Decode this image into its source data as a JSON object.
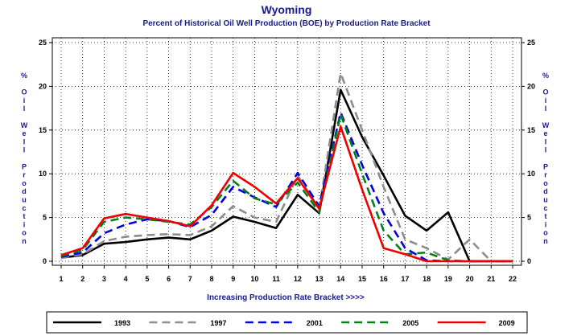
{
  "chart_data": {
    "type": "line",
    "title": "Wyoming",
    "subtitle": "Percent of Historical Oil Well Production (BOE) by Production Rate Bracket",
    "xlabel": "Increasing Production Rate Bracket >>>>",
    "ylabel": "% Oil Well Production",
    "ylim": [
      0,
      25
    ],
    "y_ticks": [
      0,
      5,
      10,
      15,
      20,
      25
    ],
    "x": [
      1,
      2,
      3,
      4,
      5,
      6,
      7,
      8,
      9,
      10,
      11,
      12,
      13,
      14,
      15,
      16,
      17,
      18,
      19,
      20,
      21,
      22
    ],
    "grid": true,
    "legend_position": "bottom",
    "series": [
      {
        "name": "1993",
        "color": "#000000",
        "dash": "solid",
        "values": [
          0.4,
          0.7,
          2.0,
          2.2,
          2.5,
          2.7,
          2.5,
          3.5,
          5.1,
          4.5,
          3.8,
          7.6,
          5.5,
          19.6,
          14.2,
          9.8,
          5.2,
          3.5,
          5.6,
          0.0,
          0.0,
          0.0
        ]
      },
      {
        "name": "1997",
        "color": "#8c8c8c",
        "dash": "dashed",
        "values": [
          0.4,
          0.8,
          2.3,
          2.8,
          3.0,
          3.1,
          3.0,
          4.0,
          6.3,
          5.0,
          4.5,
          9.8,
          6.0,
          21.5,
          15.0,
          8.5,
          2.5,
          1.5,
          0.2,
          2.5,
          0.0,
          0.0
        ]
      },
      {
        "name": "2001",
        "color": "#0000e0",
        "dash": "dashed",
        "values": [
          0.5,
          1.0,
          3.2,
          4.2,
          4.8,
          4.6,
          3.9,
          5.3,
          8.5,
          7.3,
          6.2,
          10.1,
          6.3,
          17.0,
          11.0,
          5.5,
          1.5,
          0.1,
          0.0,
          0.0,
          0.0,
          0.0
        ]
      },
      {
        "name": "2005",
        "color": "#00801a",
        "dash": "dashed",
        "values": [
          0.6,
          1.3,
          4.5,
          5.0,
          4.8,
          4.5,
          4.2,
          6.2,
          9.2,
          7.2,
          6.5,
          9.0,
          5.6,
          16.8,
          10.0,
          3.5,
          0.8,
          1.0,
          0.1,
          0.0,
          0.0,
          0.0
        ]
      },
      {
        "name": "2009",
        "color": "#ee0000",
        "dash": "solid",
        "values": [
          0.7,
          1.5,
          4.9,
          5.4,
          5.0,
          4.6,
          4.0,
          6.4,
          10.1,
          8.5,
          6.6,
          9.5,
          6.0,
          15.4,
          8.2,
          1.5,
          0.8,
          0.0,
          0.0,
          0.0,
          0.0,
          0.0
        ]
      }
    ]
  }
}
